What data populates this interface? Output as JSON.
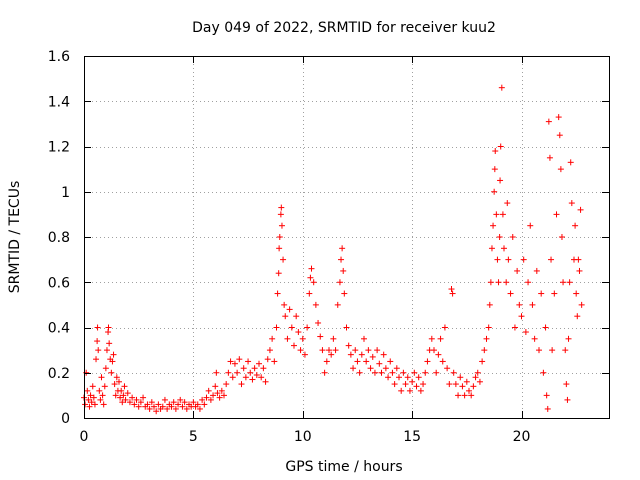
{
  "chart_data": {
    "type": "scatter",
    "title": "Day 049 of 2022, SRMTID for receiver kuu2",
    "xlabel": "GPS time / hours",
    "ylabel": "SRMTID / TECUs",
    "xlim": [
      0,
      24
    ],
    "ylim": [
      0,
      1.6
    ],
    "x_ticks": [
      0,
      5,
      10,
      15,
      20
    ],
    "x_tick_labels": [
      "0",
      "5",
      "10",
      "15",
      "20"
    ],
    "y_ticks": [
      0,
      0.2,
      0.4,
      0.6,
      0.8,
      1.0,
      1.2,
      1.4,
      1.6
    ],
    "y_tick_labels": [
      "0",
      "0.2",
      "0.4",
      "0.6",
      "0.8",
      "1",
      "1.2",
      "1.4",
      "1.6"
    ],
    "grid": true,
    "marker": "plus",
    "colors": {
      "points": "#ff0000",
      "grid": "#a0a0a0",
      "axes": "#000000"
    },
    "series": [
      {
        "name": "SRMTID",
        "points": [
          [
            0.0,
            0.09
          ],
          [
            0.05,
            0.06
          ],
          [
            0.1,
            0.2
          ],
          [
            0.15,
            0.12
          ],
          [
            0.2,
            0.08
          ],
          [
            0.25,
            0.05
          ],
          [
            0.3,
            0.1
          ],
          [
            0.35,
            0.07
          ],
          [
            0.4,
            0.14
          ],
          [
            0.45,
            0.09
          ],
          [
            0.5,
            0.06
          ],
          [
            0.55,
            0.26
          ],
          [
            0.6,
            0.34
          ],
          [
            0.62,
            0.4
          ],
          [
            0.65,
            0.3
          ],
          [
            0.7,
            0.12
          ],
          [
            0.75,
            0.08
          ],
          [
            0.8,
            0.18
          ],
          [
            0.85,
            0.1
          ],
          [
            0.9,
            0.06
          ],
          [
            0.95,
            0.14
          ],
          [
            1.0,
            0.22
          ],
          [
            1.05,
            0.3
          ],
          [
            1.1,
            0.38
          ],
          [
            1.12,
            0.4
          ],
          [
            1.15,
            0.33
          ],
          [
            1.2,
            0.26
          ],
          [
            1.25,
            0.2
          ],
          [
            1.3,
            0.25
          ],
          [
            1.35,
            0.28
          ],
          [
            1.4,
            0.15
          ],
          [
            1.45,
            0.1
          ],
          [
            1.5,
            0.18
          ],
          [
            1.55,
            0.12
          ],
          [
            1.6,
            0.16
          ],
          [
            1.65,
            0.09
          ],
          [
            1.7,
            0.12
          ],
          [
            1.75,
            0.07
          ],
          [
            1.8,
            0.1
          ],
          [
            1.85,
            0.14
          ],
          [
            1.9,
            0.08
          ],
          [
            2.0,
            0.11
          ],
          [
            2.1,
            0.07
          ],
          [
            2.2,
            0.09
          ],
          [
            2.3,
            0.06
          ],
          [
            2.4,
            0.08
          ],
          [
            2.5,
            0.05
          ],
          [
            2.6,
            0.07
          ],
          [
            2.7,
            0.09
          ],
          [
            2.8,
            0.05
          ],
          [
            2.9,
            0.06
          ],
          [
            3.0,
            0.04
          ],
          [
            3.1,
            0.07
          ],
          [
            3.2,
            0.05
          ],
          [
            3.3,
            0.03
          ],
          [
            3.4,
            0.06
          ],
          [
            3.5,
            0.04
          ],
          [
            3.6,
            0.05
          ],
          [
            3.7,
            0.08
          ],
          [
            3.8,
            0.04
          ],
          [
            3.9,
            0.06
          ],
          [
            4.0,
            0.05
          ],
          [
            4.1,
            0.07
          ],
          [
            4.2,
            0.04
          ],
          [
            4.3,
            0.06
          ],
          [
            4.4,
            0.08
          ],
          [
            4.5,
            0.05
          ],
          [
            4.6,
            0.07
          ],
          [
            4.7,
            0.04
          ],
          [
            4.8,
            0.06
          ],
          [
            4.9,
            0.05
          ],
          [
            5.0,
            0.07
          ],
          [
            5.1,
            0.05
          ],
          [
            5.2,
            0.06
          ],
          [
            5.3,
            0.04
          ],
          [
            5.4,
            0.08
          ],
          [
            5.5,
            0.06
          ],
          [
            5.6,
            0.09
          ],
          [
            5.7,
            0.12
          ],
          [
            5.8,
            0.08
          ],
          [
            5.9,
            0.1
          ],
          [
            6.0,
            0.14
          ],
          [
            6.05,
            0.2
          ],
          [
            6.1,
            0.11
          ],
          [
            6.2,
            0.09
          ],
          [
            6.3,
            0.12
          ],
          [
            6.4,
            0.1
          ],
          [
            6.5,
            0.15
          ],
          [
            6.6,
            0.2
          ],
          [
            6.7,
            0.25
          ],
          [
            6.8,
            0.18
          ],
          [
            6.9,
            0.24
          ],
          [
            7.0,
            0.2
          ],
          [
            7.1,
            0.26
          ],
          [
            7.2,
            0.15
          ],
          [
            7.3,
            0.22
          ],
          [
            7.4,
            0.18
          ],
          [
            7.5,
            0.25
          ],
          [
            7.6,
            0.2
          ],
          [
            7.7,
            0.17
          ],
          [
            7.8,
            0.22
          ],
          [
            7.9,
            0.19
          ],
          [
            8.0,
            0.24
          ],
          [
            8.1,
            0.18
          ],
          [
            8.2,
            0.22
          ],
          [
            8.3,
            0.16
          ],
          [
            8.4,
            0.26
          ],
          [
            8.5,
            0.3
          ],
          [
            8.6,
            0.35
          ],
          [
            8.7,
            0.25
          ],
          [
            8.8,
            0.4
          ],
          [
            8.85,
            0.55
          ],
          [
            8.9,
            0.64
          ],
          [
            8.92,
            0.75
          ],
          [
            8.95,
            0.8
          ],
          [
            9.0,
            0.9
          ],
          [
            9.02,
            0.93
          ],
          [
            9.05,
            0.85
          ],
          [
            9.1,
            0.7
          ],
          [
            9.15,
            0.5
          ],
          [
            9.2,
            0.45
          ],
          [
            9.3,
            0.35
          ],
          [
            9.4,
            0.48
          ],
          [
            9.5,
            0.4
          ],
          [
            9.6,
            0.32
          ],
          [
            9.7,
            0.45
          ],
          [
            9.8,
            0.38
          ],
          [
            9.9,
            0.3
          ],
          [
            10.0,
            0.35
          ],
          [
            10.1,
            0.28
          ],
          [
            10.2,
            0.4
          ],
          [
            10.3,
            0.55
          ],
          [
            10.35,
            0.62
          ],
          [
            10.4,
            0.66
          ],
          [
            10.5,
            0.6
          ],
          [
            10.6,
            0.5
          ],
          [
            10.7,
            0.42
          ],
          [
            10.8,
            0.36
          ],
          [
            10.9,
            0.3
          ],
          [
            11.0,
            0.2
          ],
          [
            11.1,
            0.25
          ],
          [
            11.2,
            0.3
          ],
          [
            11.3,
            0.28
          ],
          [
            11.4,
            0.35
          ],
          [
            11.5,
            0.3
          ],
          [
            11.6,
            0.5
          ],
          [
            11.7,
            0.6
          ],
          [
            11.75,
            0.7
          ],
          [
            11.8,
            0.75
          ],
          [
            11.85,
            0.65
          ],
          [
            11.9,
            0.55
          ],
          [
            12.0,
            0.4
          ],
          [
            12.1,
            0.32
          ],
          [
            12.2,
            0.28
          ],
          [
            12.3,
            0.22
          ],
          [
            12.4,
            0.3
          ],
          [
            12.5,
            0.25
          ],
          [
            12.6,
            0.2
          ],
          [
            12.7,
            0.28
          ],
          [
            12.8,
            0.35
          ],
          [
            12.9,
            0.25
          ],
          [
            13.0,
            0.3
          ],
          [
            13.1,
            0.22
          ],
          [
            13.2,
            0.27
          ],
          [
            13.3,
            0.2
          ],
          [
            13.4,
            0.3
          ],
          [
            13.5,
            0.24
          ],
          [
            13.6,
            0.2
          ],
          [
            13.7,
            0.28
          ],
          [
            13.8,
            0.22
          ],
          [
            13.9,
            0.18
          ],
          [
            14.0,
            0.25
          ],
          [
            14.1,
            0.2
          ],
          [
            14.2,
            0.15
          ],
          [
            14.3,
            0.22
          ],
          [
            14.4,
            0.18
          ],
          [
            14.5,
            0.12
          ],
          [
            14.6,
            0.2
          ],
          [
            14.7,
            0.15
          ],
          [
            14.8,
            0.18
          ],
          [
            14.9,
            0.12
          ],
          [
            15.0,
            0.16
          ],
          [
            15.1,
            0.2
          ],
          [
            15.2,
            0.14
          ],
          [
            15.3,
            0.18
          ],
          [
            15.4,
            0.12
          ],
          [
            15.5,
            0.15
          ],
          [
            15.6,
            0.2
          ],
          [
            15.7,
            0.25
          ],
          [
            15.8,
            0.3
          ],
          [
            15.9,
            0.35
          ],
          [
            16.0,
            0.3
          ],
          [
            16.1,
            0.2
          ],
          [
            16.2,
            0.28
          ],
          [
            16.3,
            0.35
          ],
          [
            16.4,
            0.25
          ],
          [
            16.5,
            0.4
          ],
          [
            16.6,
            0.22
          ],
          [
            16.7,
            0.15
          ],
          [
            16.8,
            0.57
          ],
          [
            16.85,
            0.55
          ],
          [
            16.9,
            0.2
          ],
          [
            17.0,
            0.15
          ],
          [
            17.1,
            0.1
          ],
          [
            17.2,
            0.18
          ],
          [
            17.3,
            0.14
          ],
          [
            17.4,
            0.1
          ],
          [
            17.5,
            0.16
          ],
          [
            17.6,
            0.12
          ],
          [
            17.7,
            0.1
          ],
          [
            17.8,
            0.14
          ],
          [
            17.9,
            0.18
          ],
          [
            18.0,
            0.2
          ],
          [
            18.1,
            0.16
          ],
          [
            18.2,
            0.25
          ],
          [
            18.3,
            0.3
          ],
          [
            18.4,
            0.35
          ],
          [
            18.5,
            0.4
          ],
          [
            18.55,
            0.5
          ],
          [
            18.6,
            0.6
          ],
          [
            18.65,
            0.75
          ],
          [
            18.7,
            0.85
          ],
          [
            18.75,
            1.0
          ],
          [
            18.78,
            1.1
          ],
          [
            18.8,
            1.18
          ],
          [
            18.85,
            0.9
          ],
          [
            18.9,
            0.7
          ],
          [
            18.95,
            0.6
          ],
          [
            19.0,
            0.8
          ],
          [
            19.02,
            1.05
          ],
          [
            19.05,
            1.2
          ],
          [
            19.1,
            1.46
          ],
          [
            19.15,
            0.9
          ],
          [
            19.2,
            0.75
          ],
          [
            19.3,
            0.6
          ],
          [
            19.35,
            0.95
          ],
          [
            19.4,
            0.7
          ],
          [
            19.5,
            0.55
          ],
          [
            19.6,
            0.8
          ],
          [
            19.7,
            0.4
          ],
          [
            19.8,
            0.65
          ],
          [
            19.9,
            0.5
          ],
          [
            20.0,
            0.45
          ],
          [
            20.1,
            0.7
          ],
          [
            20.2,
            0.38
          ],
          [
            20.3,
            0.6
          ],
          [
            20.4,
            0.85
          ],
          [
            20.5,
            0.5
          ],
          [
            20.6,
            0.35
          ],
          [
            20.7,
            0.65
          ],
          [
            20.8,
            0.3
          ],
          [
            20.9,
            0.55
          ],
          [
            21.0,
            0.2
          ],
          [
            21.1,
            0.4
          ],
          [
            21.15,
            0.1
          ],
          [
            21.2,
            0.04
          ],
          [
            21.25,
            1.31
          ],
          [
            21.3,
            1.15
          ],
          [
            21.35,
            0.7
          ],
          [
            21.4,
            0.3
          ],
          [
            21.5,
            0.55
          ],
          [
            21.6,
            0.9
          ],
          [
            21.7,
            1.33
          ],
          [
            21.75,
            1.25
          ],
          [
            21.8,
            1.1
          ],
          [
            21.85,
            0.8
          ],
          [
            21.9,
            0.6
          ],
          [
            22.0,
            0.3
          ],
          [
            22.05,
            0.15
          ],
          [
            22.1,
            0.08
          ],
          [
            22.15,
            0.35
          ],
          [
            22.2,
            0.6
          ],
          [
            22.25,
            1.13
          ],
          [
            22.3,
            0.95
          ],
          [
            22.4,
            0.7
          ],
          [
            22.45,
            0.85
          ],
          [
            22.5,
            0.55
          ],
          [
            22.55,
            0.45
          ],
          [
            22.6,
            0.7
          ],
          [
            22.65,
            0.65
          ],
          [
            22.7,
            0.92
          ],
          [
            22.75,
            0.5
          ]
        ]
      }
    ]
  }
}
